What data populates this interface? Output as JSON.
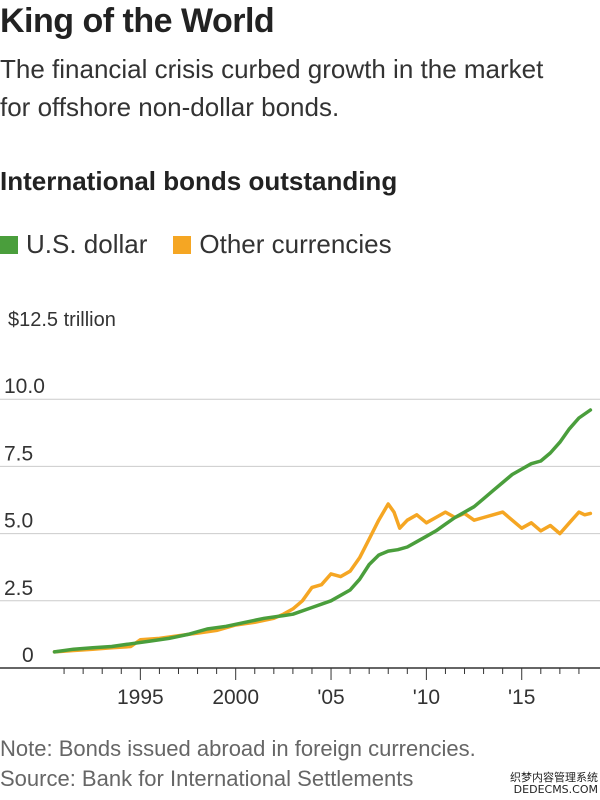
{
  "title": "King of the World",
  "subtitle": "The financial crisis curbed growth in the market for offshore non-dollar bonds.",
  "chart_heading": "International bonds outstanding",
  "note": "Note: Bonds issued abroad in foreign currencies.",
  "source": "Source: Bank for International Settlements",
  "watermark": {
    "line1": "织梦内容管理系统",
    "line2": "DEDECMS.COM"
  },
  "colors": {
    "us_dollar": "#4a9e3c",
    "other": "#f5a623",
    "grid": "#cccccc",
    "axis": "#333333"
  },
  "chart_data": {
    "type": "line",
    "title": "International bonds outstanding",
    "xlabel": "",
    "ylabel": "",
    "xlim": [
      1990,
      2019
    ],
    "ylim": [
      0,
      12.5
    ],
    "yticks": [
      {
        "value": 12.5,
        "label": "$12.5 trillion"
      },
      {
        "value": 10,
        "label": "10.0"
      },
      {
        "value": 7.5,
        "label": "7.5"
      },
      {
        "value": 5,
        "label": "5.0"
      },
      {
        "value": 2.5,
        "label": "2.5"
      },
      {
        "value": 0,
        "label": "0"
      }
    ],
    "xticks": [
      {
        "value": 1995,
        "label": "1995"
      },
      {
        "value": 2000,
        "label": "2000"
      },
      {
        "value": 2005,
        "label": "'05"
      },
      {
        "value": 2010,
        "label": "'10"
      },
      {
        "value": 2015,
        "label": "'15"
      }
    ],
    "grid": true,
    "legend": "top-left",
    "series": [
      {
        "name": "U.S. dollar",
        "color": "#4a9e3c",
        "x": [
          1990.5,
          1991.5,
          1992.5,
          1993.5,
          1994.5,
          1995.5,
          1996.5,
          1997.5,
          1998.5,
          1999.5,
          2000.5,
          2001.5,
          2002.5,
          2003.0,
          2004.0,
          2005.0,
          2006.0,
          2006.5,
          2007.0,
          2007.5,
          2008.0,
          2008.5,
          2009.0,
          2009.5,
          2010.0,
          2010.5,
          2011.0,
          2011.5,
          2012.0,
          2012.5,
          2013.0,
          2013.5,
          2014.0,
          2014.5,
          2015.0,
          2015.5,
          2016.0,
          2016.5,
          2017.0,
          2017.5,
          2018.0,
          2018.6
        ],
        "y": [
          0.6,
          0.7,
          0.75,
          0.8,
          0.9,
          1.0,
          1.1,
          1.25,
          1.45,
          1.55,
          1.7,
          1.85,
          1.95,
          2.0,
          2.25,
          2.5,
          2.9,
          3.3,
          3.85,
          4.2,
          4.35,
          4.4,
          4.5,
          4.7,
          4.9,
          5.1,
          5.35,
          5.6,
          5.8,
          6.0,
          6.3,
          6.6,
          6.9,
          7.2,
          7.4,
          7.6,
          7.7,
          8.0,
          8.4,
          8.9,
          9.3,
          9.6
        ]
      },
      {
        "name": "Other currencies",
        "color": "#f5a623",
        "x": [
          1990.5,
          1991.5,
          1992.5,
          1993.5,
          1994.5,
          1995.0,
          1996.0,
          1997.0,
          1998.0,
          1999.0,
          2000.0,
          2001.0,
          2002.0,
          2002.5,
          2003.0,
          2003.5,
          2004.0,
          2004.5,
          2005.0,
          2005.5,
          2006.0,
          2006.5,
          2007.0,
          2007.5,
          2008.0,
          2008.3,
          2008.6,
          2009.0,
          2009.5,
          2010.0,
          2010.5,
          2011.0,
          2011.5,
          2012.0,
          2012.5,
          2013.0,
          2013.5,
          2014.0,
          2014.5,
          2015.0,
          2015.5,
          2016.0,
          2016.5,
          2017.0,
          2017.5,
          2018.0,
          2018.3,
          2018.6
        ],
        "y": [
          0.6,
          0.65,
          0.7,
          0.75,
          0.8,
          1.05,
          1.1,
          1.2,
          1.3,
          1.4,
          1.6,
          1.7,
          1.85,
          2.0,
          2.2,
          2.5,
          3.0,
          3.1,
          3.5,
          3.4,
          3.6,
          4.1,
          4.8,
          5.5,
          6.1,
          5.8,
          5.2,
          5.5,
          5.7,
          5.4,
          5.6,
          5.8,
          5.6,
          5.75,
          5.5,
          5.6,
          5.7,
          5.8,
          5.5,
          5.2,
          5.4,
          5.1,
          5.3,
          5.0,
          5.4,
          5.8,
          5.7,
          5.75
        ]
      }
    ]
  }
}
